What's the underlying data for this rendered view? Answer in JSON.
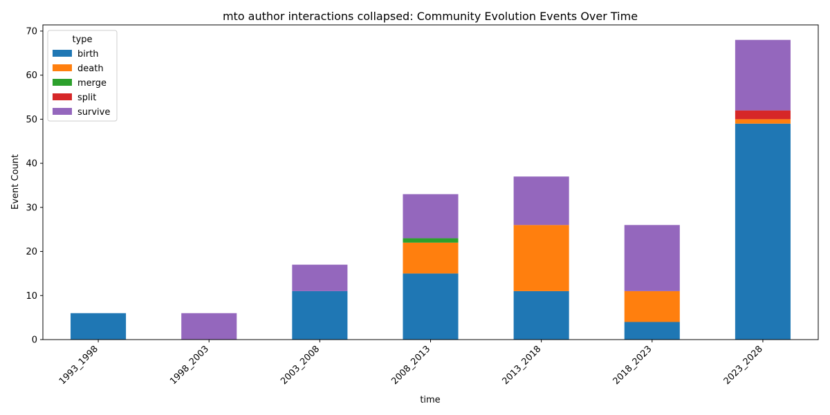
{
  "chart_data": {
    "type": "bar",
    "stacked": true,
    "title": "mto author interactions collapsed: Community Evolution Events Over Time",
    "xlabel": "time",
    "ylabel": "Event Count",
    "ylim": [
      0,
      71.4
    ],
    "yticks": [
      0,
      10,
      20,
      30,
      40,
      50,
      60,
      70
    ],
    "categories": [
      "1993_1998",
      "1998_2003",
      "2003_2008",
      "2008_2013",
      "2013_2018",
      "2018_2023",
      "2023_2028"
    ],
    "legend_title": "type",
    "legend_position": "top-left",
    "series": [
      {
        "name": "birth",
        "color": "#1f77b4",
        "values": [
          6,
          0,
          11,
          15,
          11,
          4,
          49
        ]
      },
      {
        "name": "death",
        "color": "#ff7f0e",
        "values": [
          0,
          0,
          0,
          7,
          15,
          7,
          1
        ]
      },
      {
        "name": "merge",
        "color": "#2ca02c",
        "values": [
          0,
          0,
          0,
          1,
          0,
          0,
          0
        ]
      },
      {
        "name": "split",
        "color": "#d62728",
        "values": [
          0,
          0,
          0,
          0,
          0,
          0,
          2
        ]
      },
      {
        "name": "survive",
        "color": "#9467bd",
        "values": [
          0,
          6,
          6,
          10,
          11,
          15,
          16
        ]
      }
    ]
  }
}
